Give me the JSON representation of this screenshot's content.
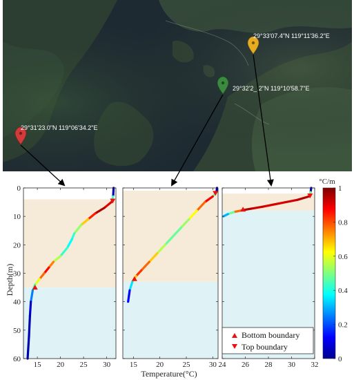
{
  "colors": {
    "thermocline_band": "#f6ead8",
    "mixed_band": "#dff3f7",
    "satellite_base": "#1e2a32",
    "marker_red": "#d23b3b",
    "marker_green": "#3b8a3f",
    "marker_yellow": "#e6ac22",
    "bottom_marker": "#ee1010",
    "top_marker": "#ee1010"
  },
  "map": {
    "markers": [
      {
        "label": "29°31'23.0\"N 119°06'34.2\"E",
        "color": "marker_red",
        "icon": "map-pin-icon"
      },
      {
        "label": "29°32'2_.2\"N 119°10'58.7\"E",
        "color": "marker_green",
        "icon": "map-pin-icon"
      },
      {
        "label": "29°33'07.4\"N 119°11'36.2\"E",
        "color": "marker_yellow",
        "icon": "map-pin-icon"
      }
    ]
  },
  "chart_data": [
    {
      "type": "line",
      "xlabel": "",
      "ylabel": "Depth(m)",
      "xlim": [
        12,
        32
      ],
      "ylim": [
        60,
        0
      ],
      "xticks": [
        15,
        20,
        25,
        30
      ],
      "yticks": [
        0,
        10,
        20,
        30,
        40,
        50,
        60
      ],
      "bands": [
        {
          "from": 4,
          "to": 35,
          "kind": "thermocline_band"
        },
        {
          "from": 35,
          "to": 60,
          "kind": "mixed_band"
        }
      ],
      "profile": {
        "x": [
          31.5,
          31.4,
          31.0,
          29.5,
          27.5,
          26.0,
          24.5,
          23.0,
          22.5,
          21.5,
          20.0,
          18.5,
          17.5,
          16.5,
          15.5,
          14.5,
          14.0,
          13.6,
          13.4,
          13.2,
          12.9
        ],
        "y": [
          0,
          3,
          5,
          7,
          9,
          11,
          13,
          16,
          18,
          21,
          24,
          26,
          28,
          30,
          32,
          34,
          36,
          40,
          45,
          52,
          60
        ],
        "gradient": [
          0.05,
          0.05,
          0.85,
          0.95,
          0.95,
          0.75,
          0.6,
          0.45,
          0.4,
          0.35,
          0.5,
          0.6,
          0.9,
          0.85,
          0.7,
          0.5,
          0.4,
          0.1,
          0.05,
          0.05,
          0.05
        ]
      },
      "top_boundary": [
        31.3,
        4.5
      ],
      "bottom_boundary": [
        14.5,
        35
      ]
    },
    {
      "type": "line",
      "xlabel": "Temperature(°C)",
      "ylabel": "",
      "xlim": [
        13,
        31
      ],
      "ylim": [
        60,
        0
      ],
      "xticks": [
        15,
        20,
        25,
        30
      ],
      "yticks": [
        0,
        10,
        20,
        30,
        40,
        50,
        60
      ],
      "bands": [
        {
          "from": 1,
          "to": 33,
          "kind": "thermocline_band"
        },
        {
          "from": 33,
          "to": 60,
          "kind": "mixed_band"
        }
      ],
      "profile": {
        "x": [
          30.8,
          30.7,
          30.0,
          28.5,
          27.0,
          25.5,
          24.0,
          22.5,
          21.0,
          19.5,
          18.0,
          16.5,
          15.5,
          14.8,
          14.3,
          14.0
        ],
        "y": [
          0,
          1.5,
          3,
          5,
          8,
          11,
          14,
          17,
          20,
          23,
          26,
          29,
          31,
          33,
          36,
          40
        ],
        "gradient": [
          0.05,
          0.05,
          0.9,
          0.85,
          0.7,
          0.55,
          0.5,
          0.45,
          0.5,
          0.6,
          0.75,
          0.8,
          0.85,
          0.5,
          0.2,
          0.05
        ]
      },
      "top_boundary": [
        30.5,
        1.8
      ],
      "bottom_boundary": [
        15.2,
        32
      ]
    },
    {
      "type": "line",
      "xlabel": "",
      "ylabel": "",
      "xlim": [
        24,
        32
      ],
      "ylim": [
        60,
        0
      ],
      "xticks": [
        24,
        26,
        28,
        30,
        32
      ],
      "yticks": [
        0,
        10,
        20,
        30,
        40,
        50,
        60
      ],
      "bands": [
        {
          "from": 2,
          "to": 8,
          "kind": "thermocline_band"
        },
        {
          "from": 8,
          "to": 60,
          "kind": "mixed_band"
        }
      ],
      "profile": {
        "x": [
          31.7,
          31.65,
          31.5,
          30.5,
          29.5,
          28.5,
          27.5,
          26.5,
          25.8,
          25.0,
          24.5,
          24.1
        ],
        "y": [
          0,
          1.5,
          3,
          4.2,
          5.0,
          5.8,
          6.6,
          7.3,
          7.8,
          8.5,
          9.2,
          10
        ],
        "gradient": [
          0.05,
          0.05,
          0.95,
          0.95,
          0.9,
          0.92,
          0.9,
          0.95,
          0.95,
          0.6,
          0.35,
          0.25
        ]
      },
      "top_boundary": [
        31.6,
        2.7
      ],
      "bottom_boundary": [
        25.8,
        7.6
      ]
    }
  ],
  "colorbar": {
    "unit": "°C/m",
    "ticks": [
      "0",
      "0.2",
      "0.4",
      "0.6",
      "0.8",
      "1"
    ],
    "min": 0,
    "max": 1
  },
  "legend": {
    "bottom_label": "Bottom boundary",
    "top_label": "Top boundary"
  }
}
